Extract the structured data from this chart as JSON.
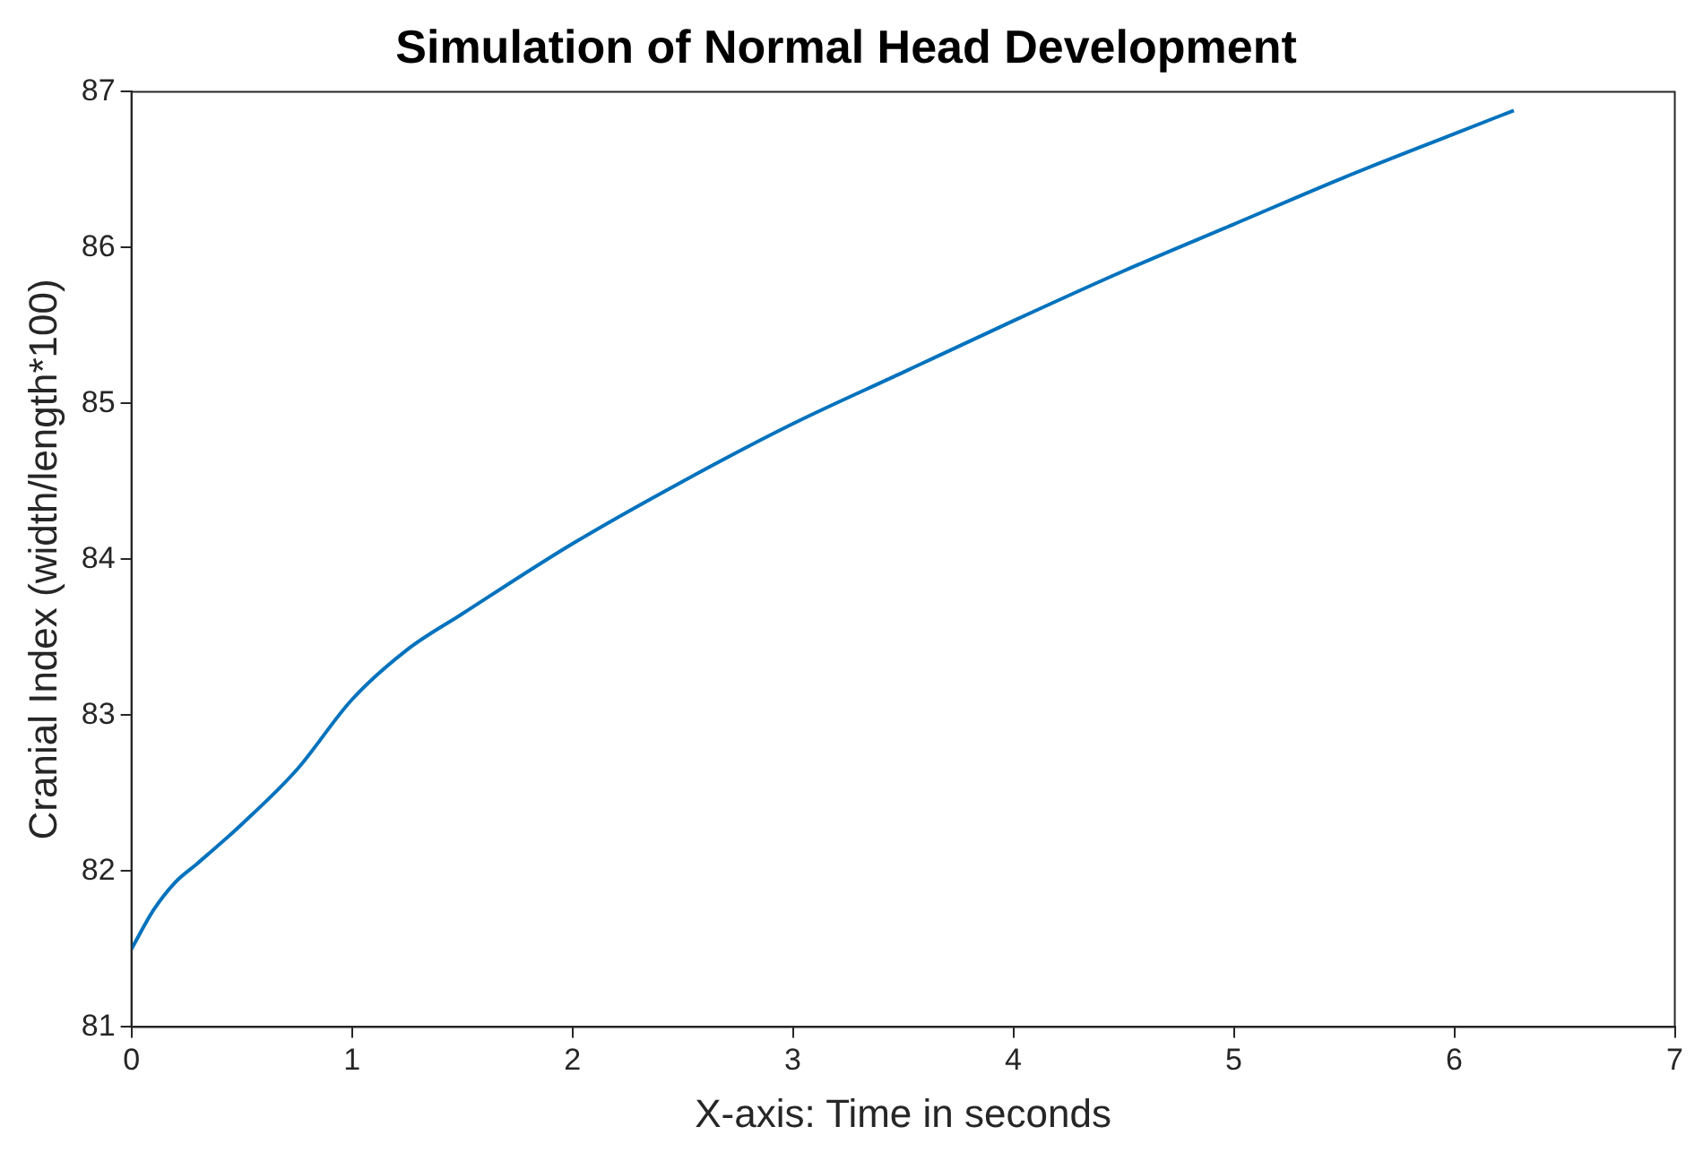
{
  "chart_data": {
    "type": "line",
    "title": "Simulation of Normal Head Development",
    "xlabel": "X-axis: Time in seconds",
    "ylabel": "Cranial Index (width/length*100)",
    "x": [
      0,
      0.1,
      0.2,
      0.3,
      0.5,
      0.75,
      1,
      1.25,
      1.5,
      2,
      2.5,
      3,
      3.5,
      4,
      4.5,
      5,
      5.5,
      6,
      6.27
    ],
    "series": [
      {
        "color": "#0072bd",
        "values": [
          81.5,
          81.75,
          81.93,
          82.05,
          82.3,
          82.65,
          83.1,
          83.42,
          83.65,
          84.1,
          84.5,
          84.87,
          85.2,
          85.53,
          85.85,
          86.15,
          86.45,
          86.73,
          86.88
        ]
      }
    ],
    "xlim": [
      0,
      7
    ],
    "xticks": [
      0,
      1,
      2,
      3,
      4,
      5,
      6,
      7
    ],
    "ylim": [
      81,
      87
    ],
    "yticks": [
      81,
      82,
      83,
      84,
      85,
      86,
      87
    ],
    "grid": false,
    "legend": false,
    "marker": "none",
    "line_style": "solid"
  }
}
